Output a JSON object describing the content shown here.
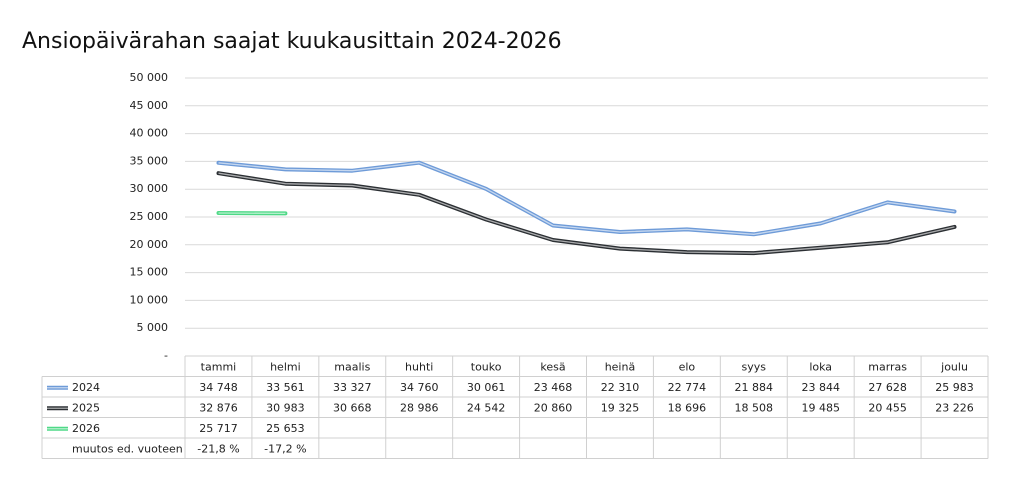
{
  "chart_data": {
    "type": "line",
    "title": "Ansiopäivärahan saajat kuukausittain 2024-2026",
    "categories": [
      "tammi",
      "helmi",
      "maalis",
      "huhti",
      "touko",
      "kesä",
      "heinä",
      "elo",
      "syys",
      "loka",
      "marras",
      "joulu"
    ],
    "series": [
      {
        "name": "2024",
        "color": "#6e9bd8",
        "values": [
          34748,
          33561,
          33327,
          34760,
          30061,
          23468,
          22310,
          22774,
          21884,
          23844,
          27628,
          25983
        ],
        "value_labels": [
          "34 748",
          "33 561",
          "33 327",
          "34 760",
          "30 061",
          "23 468",
          "22 310",
          "22 774",
          "21 884",
          "23 844",
          "27 628",
          "25 983"
        ]
      },
      {
        "name": "2025",
        "color": "#2b2f33",
        "values": [
          32876,
          30983,
          30668,
          28986,
          24542,
          20860,
          19325,
          18696,
          18508,
          19485,
          20455,
          23226
        ],
        "value_labels": [
          "32 876",
          "30 983",
          "30 668",
          "28 986",
          "24 542",
          "20 860",
          "19 325",
          "18 696",
          "18 508",
          "19 485",
          "20 455",
          "23 226"
        ]
      },
      {
        "name": "2026",
        "color": "#4fd987",
        "values": [
          25717,
          25653,
          null,
          null,
          null,
          null,
          null,
          null,
          null,
          null,
          null,
          null
        ],
        "value_labels": [
          "25 717",
          "25 653",
          null,
          null,
          null,
          null,
          null,
          null,
          null,
          null,
          null,
          null
        ]
      }
    ],
    "change": {
      "name": "muutos ed. vuoteen",
      "values": [
        -21.8,
        -17.2
      ],
      "value_labels": [
        "-21,8 %",
        "-17,2 %"
      ]
    },
    "ylim": [
      0,
      50000
    ],
    "yticks": [
      {
        "value": 0,
        "label": "-"
      },
      {
        "value": 5000,
        "label": "5 000"
      },
      {
        "value": 10000,
        "label": "10 000"
      },
      {
        "value": 15000,
        "label": "15 000"
      },
      {
        "value": 20000,
        "label": "20 000"
      },
      {
        "value": 25000,
        "label": "25 000"
      },
      {
        "value": 30000,
        "label": "30 000"
      },
      {
        "value": 35000,
        "label": "35 000"
      },
      {
        "value": 40000,
        "label": "40 000"
      },
      {
        "value": 45000,
        "label": "45 000"
      },
      {
        "value": 50000,
        "label": "50 000"
      }
    ],
    "grid": true
  }
}
